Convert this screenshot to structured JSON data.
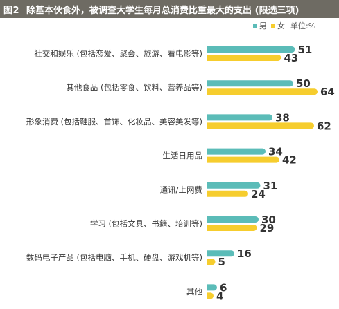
{
  "title": {
    "fig": "图2",
    "text": "除基本伙食外，被调查大学生每月总消费比重最大的支出 (限选三项)"
  },
  "legend": {
    "male": "男",
    "female": "女",
    "unit": "单位:%"
  },
  "colors": {
    "male": "#5bbcb8",
    "female": "#f6cd2e",
    "title_bg": "#6e6b63"
  },
  "chart_data": {
    "type": "bar",
    "orientation": "horizontal",
    "categories": [
      "社交和娱乐 (包括恋爱、聚会、旅游、看电影等)",
      "其他食品 (包括零食、饮料、营养品等)",
      "形象消费 (包括鞋服、首饰、化妆品、美容美发等)",
      "生活日用品",
      "通讯/上网费",
      "学习 (包括文具、书籍、培训等)",
      "数码电子产品 (包括电脑、手机、硬盘、游戏机等)",
      "其他"
    ],
    "series": [
      {
        "name": "男",
        "values": [
          51,
          50,
          38,
          34,
          31,
          30,
          16,
          6
        ]
      },
      {
        "name": "女",
        "values": [
          43,
          64,
          62,
          42,
          24,
          29,
          5,
          4
        ]
      }
    ],
    "xlim": [
      0,
      64
    ],
    "grid": false,
    "legend_position": "top-right"
  }
}
